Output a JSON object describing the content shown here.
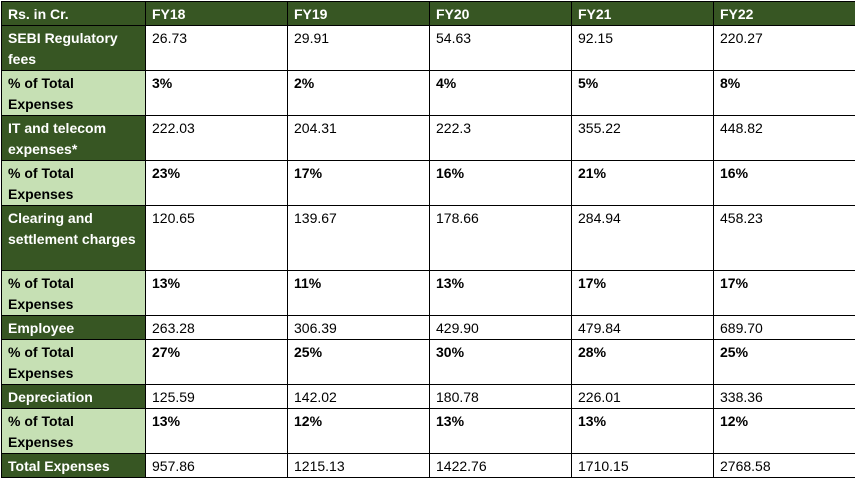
{
  "table": {
    "header": [
      "Rs. in Cr.",
      "FY18",
      "FY19",
      "FY20",
      "FY21",
      "FY22"
    ],
    "rows": [
      {
        "label": "SEBI Regulatory fees",
        "values": [
          "26.73",
          "29.91",
          "54.63",
          "92.15",
          "220.27"
        ]
      },
      {
        "label": "% of Total Expenses",
        "values": [
          "3%",
          "2%",
          "4%",
          "5%",
          "8%"
        ]
      },
      {
        "label": "IT and telecom expenses*",
        "values": [
          "222.03",
          "204.31",
          "222.3",
          "355.22",
          "448.82"
        ]
      },
      {
        "label": "% of Total Expenses",
        "values": [
          "23%",
          "17%",
          "16%",
          "21%",
          "16%"
        ]
      },
      {
        "label": "Clearing and settlement charges",
        "values": [
          "120.65",
          "139.67",
          "178.66",
          "284.94",
          "458.23"
        ]
      },
      {
        "label": "% of Total Expenses",
        "values": [
          "13%",
          "11%",
          "13%",
          "17%",
          "17%"
        ]
      },
      {
        "label": "Employee",
        "values": [
          "263.28",
          "306.39",
          "429.90",
          "479.84",
          "689.70"
        ]
      },
      {
        "label": "% of Total Expenses",
        "values": [
          "27%",
          "25%",
          "30%",
          "28%",
          "25%"
        ]
      },
      {
        "label": "Depreciation",
        "values": [
          "125.59",
          "142.02",
          "180.78",
          "226.01",
          "338.36"
        ]
      },
      {
        "label": "% of Total Expenses",
        "values": [
          "13%",
          "12%",
          "13%",
          "13%",
          "12%"
        ]
      },
      {
        "label": "Total Expenses",
        "values": [
          "957.86",
          "1215.13",
          "1422.76",
          "1710.15",
          "2768.58"
        ]
      }
    ]
  },
  "colors": {
    "dark_green": "#375623",
    "light_green": "#c6e0b4"
  }
}
